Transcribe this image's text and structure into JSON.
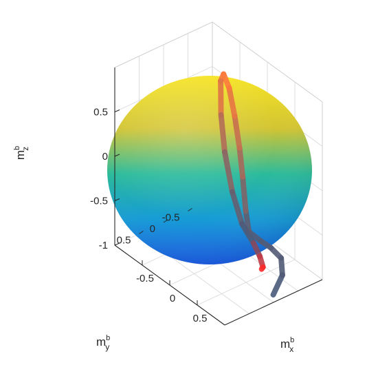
{
  "chart_data": {
    "type": "surface",
    "xlabel": {
      "base": "m",
      "sup": "b",
      "sub": "x"
    },
    "ylabel": {
      "base": "m",
      "sup": "b",
      "sub": "y"
    },
    "zlabel": {
      "base": "m",
      "sup": "b",
      "sub": "z"
    },
    "xlim": [
      -1,
      1
    ],
    "ylim": [
      -1,
      1
    ],
    "zlim": [
      -1,
      1
    ],
    "xticks": [
      {
        "value": -0.5,
        "label": "-0.5"
      },
      {
        "value": 0,
        "label": "0"
      },
      {
        "value": 0.5,
        "label": "0.5"
      }
    ],
    "yticks": [
      {
        "value": -0.5,
        "label": "-0.5"
      },
      {
        "value": 0,
        "label": "0"
      },
      {
        "value": 0.5,
        "label": "0.5"
      }
    ],
    "zticks": [
      {
        "value": -1,
        "label": "-1"
      },
      {
        "value": -0.5,
        "label": "-0.5"
      },
      {
        "value": 0,
        "label": "0"
      },
      {
        "value": 0.5,
        "label": "0.5"
      }
    ],
    "grid": true,
    "colormap": "parula",
    "colors": {
      "sphere_top": "#f7e425",
      "sphere_mid": "#2bbb9a",
      "sphere_bottom": "#1a6ae6",
      "trajectory_start": "#ff2a2a",
      "trajectory_high": "#ff7a3c",
      "trajectory_low": "#4a5a7a"
    },
    "sphere": {
      "center": [
        0,
        0,
        0
      ],
      "radius": 1
    },
    "trajectory": [
      {
        "x": 0.95,
        "y": -0.05,
        "z": -0.95
      },
      {
        "x": 0.85,
        "y": -0.35,
        "z": -0.85
      },
      {
        "x": 0.65,
        "y": -0.55,
        "z": -0.8
      },
      {
        "x": 0.42,
        "y": -0.6,
        "z": -0.8
      },
      {
        "x": 0.22,
        "y": -0.62,
        "z": -0.82
      },
      {
        "x": 0.02,
        "y": -0.6,
        "z": -0.8
      },
      {
        "x": -0.02,
        "y": -0.58,
        "z": -0.58
      },
      {
        "x": -0.05,
        "y": -0.55,
        "z": -0.2
      },
      {
        "x": -0.08,
        "y": -0.52,
        "z": 0.12
      },
      {
        "x": -0.15,
        "y": -0.5,
        "z": 0.45
      },
      {
        "x": -0.25,
        "y": -0.5,
        "z": 0.72
      },
      {
        "x": -0.37,
        "y": -0.52,
        "z": 0.82
      },
      {
        "x": -0.45,
        "y": -0.55,
        "z": 0.7
      },
      {
        "x": -0.47,
        "y": -0.58,
        "z": 0.3
      },
      {
        "x": -0.42,
        "y": -0.6,
        "z": -0.1
      },
      {
        "x": -0.3,
        "y": -0.62,
        "z": -0.5
      },
      {
        "x": -0.15,
        "y": -0.65,
        "z": -0.8
      },
      {
        "x": 0.05,
        "y": -0.66,
        "z": -0.93
      },
      {
        "x": 0.2,
        "y": -0.62,
        "z": -1.0
      },
      {
        "x": 0.32,
        "y": -0.55,
        "z": -1.05
      },
      {
        "x": 0.34,
        "y": -0.5,
        "z": -1.05
      }
    ]
  }
}
